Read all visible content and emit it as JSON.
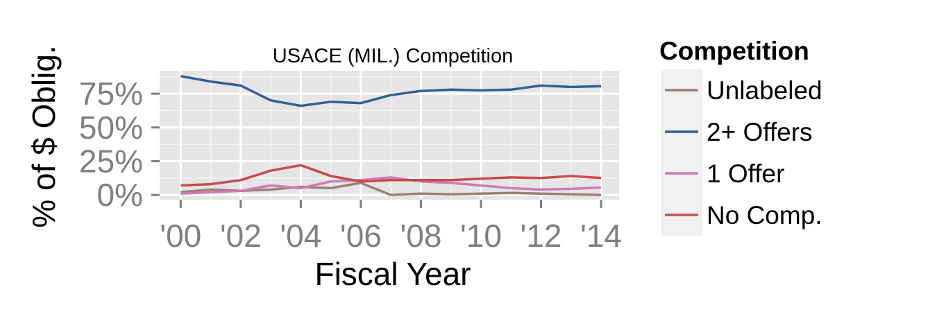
{
  "chart_data": {
    "type": "line",
    "title": "USACE (MIL.) Competition",
    "xlabel": "Fiscal Year",
    "ylabel": "% of $ Oblig.",
    "x": [
      2000,
      2001,
      2002,
      2003,
      2004,
      2005,
      2006,
      2007,
      2008,
      2009,
      2010,
      2011,
      2012,
      2013,
      2014
    ],
    "x_ticks": [
      {
        "value": 2000,
        "label": "'00"
      },
      {
        "value": 2002,
        "label": "'02"
      },
      {
        "value": 2004,
        "label": "'04"
      },
      {
        "value": 2006,
        "label": "'06"
      },
      {
        "value": 2008,
        "label": "'08"
      },
      {
        "value": 2010,
        "label": "'10"
      },
      {
        "value": 2012,
        "label": "'12"
      },
      {
        "value": 2014,
        "label": "'14"
      }
    ],
    "y_ticks": [
      {
        "value": 0,
        "label": "0%"
      },
      {
        "value": 0.25,
        "label": "25%"
      },
      {
        "value": 0.5,
        "label": "50%"
      },
      {
        "value": 0.75,
        "label": "75%"
      }
    ],
    "xlim": [
      1999.3,
      2014.6
    ],
    "ylim": [
      -0.035,
      0.92
    ],
    "grid": true,
    "legend": {
      "title": "Competition",
      "placement": "right"
    },
    "series": [
      {
        "name": "Unlabeled",
        "color": "#9e7e7e",
        "values": [
          0.02,
          0.04,
          0.03,
          0.04,
          0.06,
          0.05,
          0.09,
          0.0,
          0.01,
          0.005,
          0.01,
          0.015,
          0.01,
          0.005,
          0.0
        ]
      },
      {
        "name": "2+ Offers",
        "color": "#2f6296",
        "values": [
          0.88,
          0.84,
          0.81,
          0.7,
          0.66,
          0.69,
          0.68,
          0.74,
          0.77,
          0.78,
          0.775,
          0.78,
          0.81,
          0.8,
          0.805
        ]
      },
      {
        "name": "1 Offer",
        "color": "#d07bb4",
        "values": [
          0.01,
          0.02,
          0.03,
          0.07,
          0.05,
          0.1,
          0.11,
          0.13,
          0.1,
          0.09,
          0.07,
          0.05,
          0.04,
          0.045,
          0.055
        ]
      },
      {
        "name": "No Comp.",
        "color": "#c84b4b",
        "values": [
          0.07,
          0.08,
          0.11,
          0.18,
          0.22,
          0.14,
          0.1,
          0.11,
          0.11,
          0.11,
          0.12,
          0.13,
          0.125,
          0.14,
          0.125
        ]
      }
    ]
  },
  "colors": {
    "panel_background": "#e5e5e5",
    "grid_line": "#ffffff",
    "legend_key_background": "#f0f0f0",
    "tick_text": "#7f7f7f"
  }
}
